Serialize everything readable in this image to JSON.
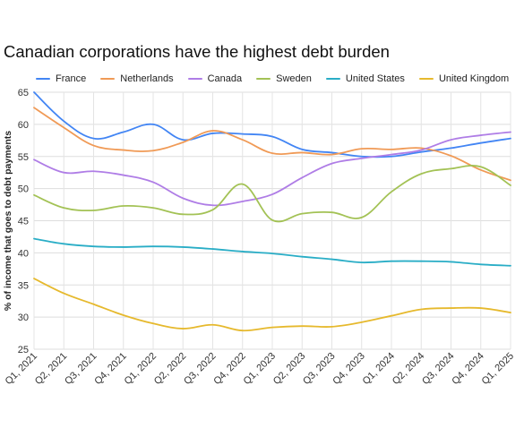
{
  "chart_data": {
    "type": "line",
    "title": "Canadian corporations have the highest debt burden",
    "xlabel": "",
    "ylabel": "% of income that goes to debt payments",
    "ylim": [
      25,
      65
    ],
    "yticks": [
      25,
      30,
      35,
      40,
      45,
      50,
      55,
      60,
      65
    ],
    "grid": true,
    "legend_position": "top",
    "categories": [
      "Q1, 2021",
      "Q2, 2021",
      "Q3, 2021",
      "Q4, 2021",
      "Q1, 2022",
      "Q2, 2022",
      "Q3, 2022",
      "Q4, 2022",
      "Q1, 2023",
      "Q2, 2023",
      "Q3, 2023",
      "Q4, 2023",
      "Q1, 2024",
      "Q2, 2024",
      "Q3, 2024",
      "Q4, 2024",
      "Q1, 2025"
    ],
    "series": [
      {
        "name": "France",
        "color": "#4285f4",
        "values": [
          65.0,
          60.5,
          57.8,
          58.8,
          60.0,
          57.6,
          58.6,
          58.5,
          58.1,
          56.1,
          55.6,
          55.0,
          55.0,
          55.7,
          56.3,
          57.1,
          57.8
        ]
      },
      {
        "name": "Netherlands",
        "color": "#f09a56",
        "values": [
          62.6,
          59.5,
          56.7,
          56.0,
          55.9,
          57.2,
          59.0,
          57.6,
          55.5,
          55.6,
          55.3,
          56.2,
          56.1,
          56.3,
          55.1,
          52.9,
          51.3
        ]
      },
      {
        "name": "Canada",
        "color": "#af7de6",
        "values": [
          54.5,
          52.5,
          52.7,
          52.1,
          51.0,
          48.5,
          47.4,
          48.0,
          49.1,
          51.7,
          53.9,
          54.7,
          55.3,
          56.0,
          57.6,
          58.3,
          58.8
        ]
      },
      {
        "name": "Sweden",
        "color": "#a3c255",
        "values": [
          49.0,
          47.0,
          46.6,
          47.3,
          47.0,
          46.0,
          46.7,
          50.7,
          45.1,
          46.1,
          46.3,
          45.5,
          49.5,
          52.3,
          53.1,
          53.4,
          50.5
        ]
      },
      {
        "name": "United States",
        "color": "#29adc6",
        "values": [
          42.2,
          41.4,
          41.0,
          40.9,
          41.0,
          40.9,
          40.6,
          40.2,
          39.9,
          39.4,
          39.0,
          38.5,
          38.7,
          38.7,
          38.6,
          38.2,
          38.0
        ]
      },
      {
        "name": "United Kingdom",
        "color": "#e6b92d",
        "values": [
          36.0,
          33.7,
          32.0,
          30.3,
          29.0,
          28.2,
          28.8,
          27.9,
          28.4,
          28.6,
          28.5,
          29.2,
          30.2,
          31.2,
          31.4,
          31.4,
          30.7
        ]
      }
    ]
  }
}
